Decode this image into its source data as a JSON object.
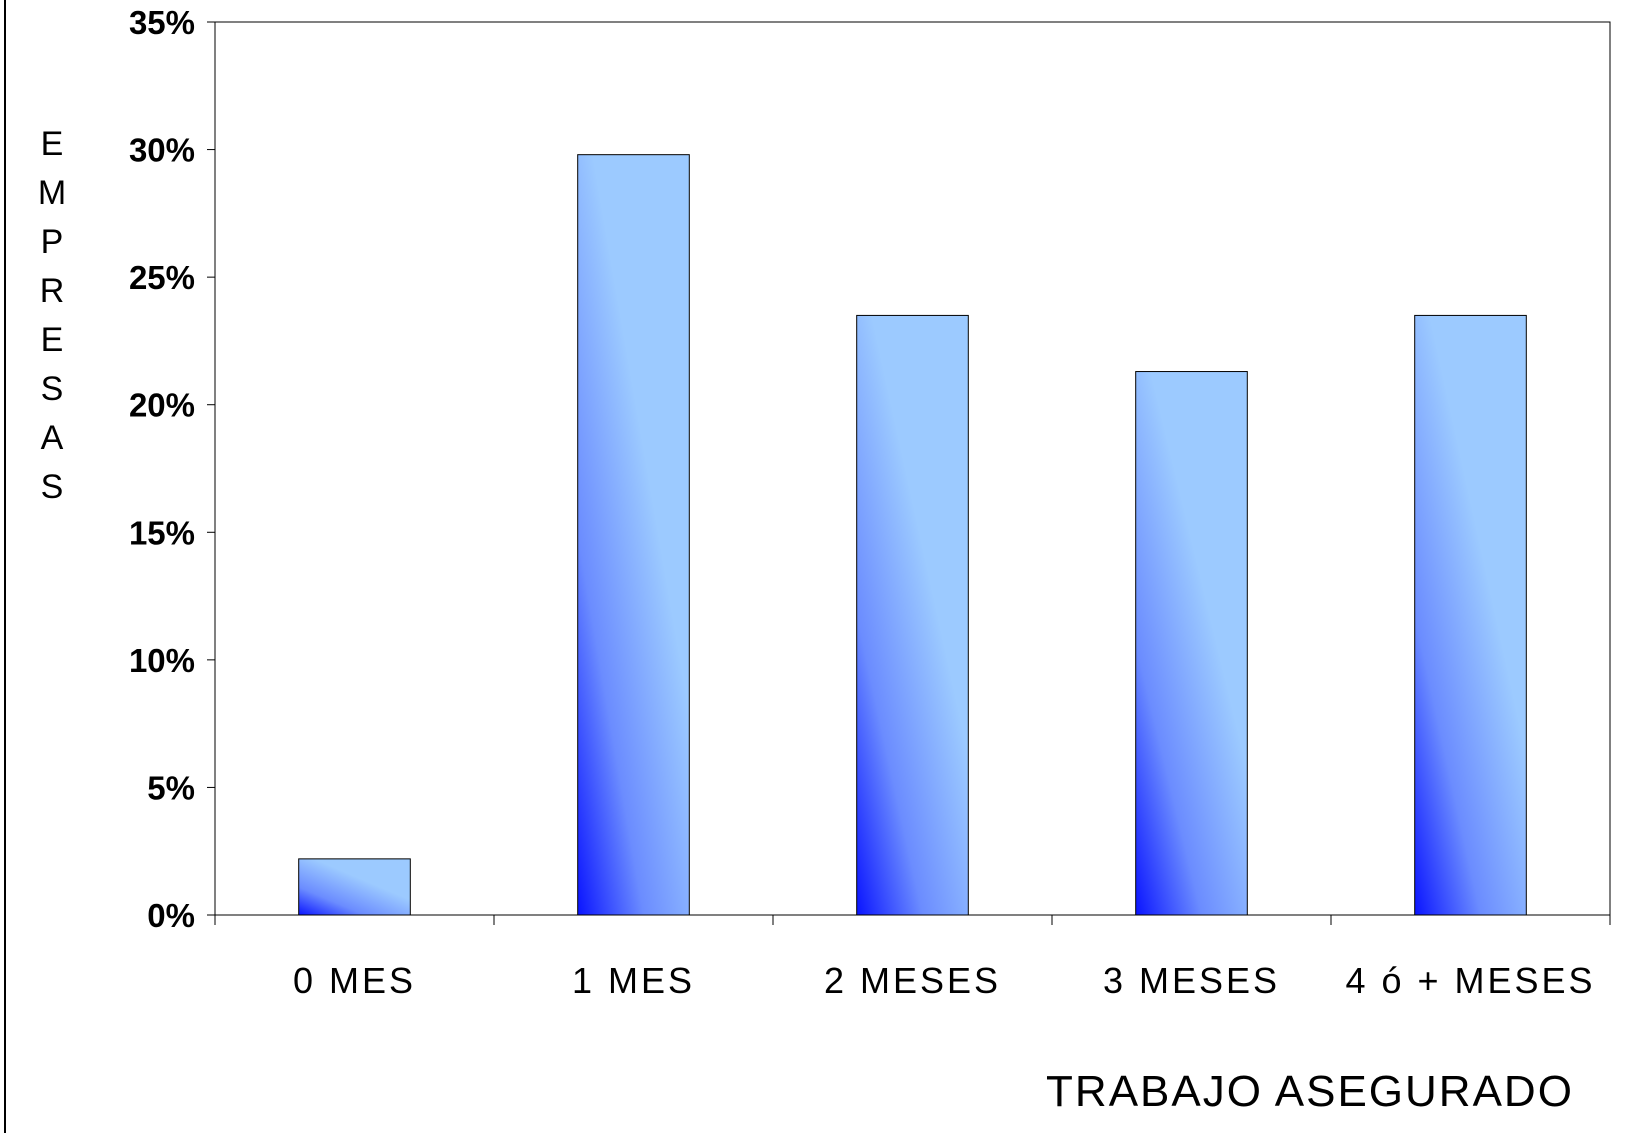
{
  "chart_data": {
    "type": "bar",
    "categories": [
      "0  MES",
      "1  MES",
      "2  MESES",
      "3  MESES",
      "4  ó  +  MESES"
    ],
    "values": [
      2.2,
      29.8,
      23.5,
      21.3,
      23.5
    ],
    "value_format": "percent",
    "xlabel": "TRABAJO ASEGURADO",
    "ylabel": "EMPRESAS",
    "ylim": [
      0,
      35
    ],
    "yticks": [
      "0%",
      "5%",
      "10%",
      "15%",
      "20%",
      "25%",
      "30%",
      "35%"
    ],
    "grid": false,
    "legend": "none",
    "colors": {
      "bar_dark": "#0a14ff",
      "bar_mid": "#6b8cff",
      "bar_light": "#9ccaff",
      "axis": "#000000"
    }
  }
}
